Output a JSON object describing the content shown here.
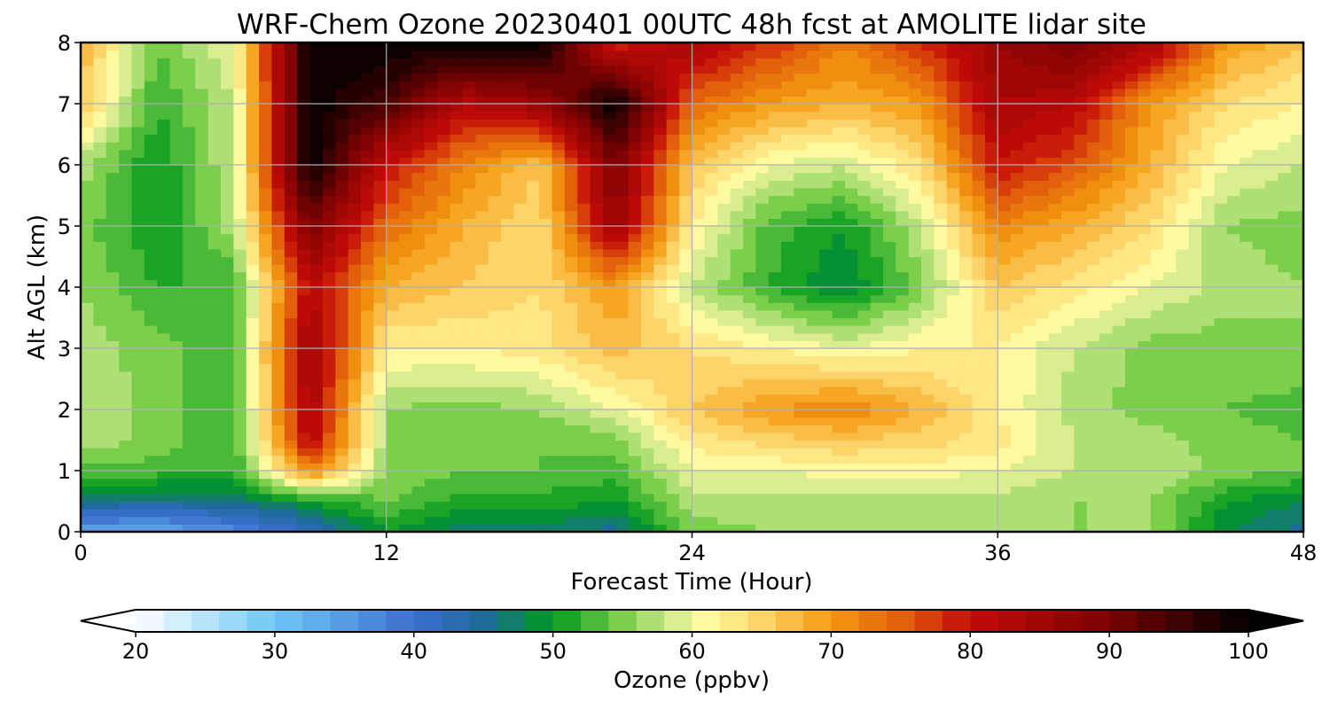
{
  "chart_data": {
    "type": "heatmap",
    "title": "WRF-Chem Ozone  20230401 00UTC 48h fcst at AMOLITE lidar site",
    "xlabel": "Forecast Time (Hour)",
    "ylabel": "Alt AGL (km)",
    "xlim": [
      0,
      48
    ],
    "ylim": [
      0,
      8
    ],
    "xticks": [
      0,
      12,
      24,
      36,
      48
    ],
    "yticks": [
      0,
      1,
      2,
      3,
      4,
      5,
      6,
      7,
      8
    ],
    "grid": true,
    "x": [
      0,
      3,
      6,
      9,
      12,
      15,
      18,
      21,
      24,
      27,
      30,
      33,
      36,
      39,
      42,
      45,
      48
    ],
    "y": [
      0,
      0.5,
      1,
      1.5,
      2,
      3,
      4,
      5,
      6,
      7,
      8
    ],
    "z": [
      [
        34,
        33,
        37,
        42,
        50,
        47,
        47,
        45,
        55,
        56,
        56,
        56,
        56,
        56,
        56,
        48,
        45
      ],
      [
        46,
        45,
        46,
        50,
        54,
        51,
        51,
        50,
        57,
        57,
        57,
        57,
        57,
        56,
        56,
        50,
        48
      ],
      [
        53,
        53,
        52,
        72,
        56,
        54,
        54,
        53,
        60,
        60,
        61,
        61,
        60,
        58,
        58,
        55,
        54
      ],
      [
        58,
        55,
        52,
        82,
        56,
        55,
        54,
        55,
        63,
        65,
        66,
        65,
        63,
        58,
        57,
        55,
        54
      ],
      [
        58,
        55,
        52,
        84,
        56,
        55,
        56,
        60,
        66,
        70,
        72,
        68,
        62,
        57,
        55,
        54,
        53
      ],
      [
        57,
        55,
        52,
        86,
        62,
        62,
        63,
        67,
        64,
        62,
        60,
        62,
        62,
        58,
        55,
        55,
        56
      ],
      [
        56,
        52,
        52,
        82,
        68,
        66,
        64,
        70,
        58,
        52,
        48,
        55,
        66,
        63,
        60,
        57,
        56
      ],
      [
        55,
        50,
        57,
        90,
        74,
        68,
        64,
        86,
        62,
        53,
        50,
        58,
        72,
        68,
        64,
        56,
        55
      ],
      [
        57,
        50,
        58,
        100,
        80,
        72,
        66,
        90,
        66,
        60,
        58,
        64,
        80,
        76,
        68,
        60,
        58
      ],
      [
        66,
        52,
        58,
        100,
        94,
        82,
        86,
        100,
        74,
        70,
        68,
        70,
        84,
        82,
        70,
        64,
        62
      ],
      [
        68,
        54,
        60,
        100,
        100,
        100,
        100,
        78,
        84,
        78,
        72,
        78,
        86,
        90,
        84,
        70,
        66
      ]
    ]
  },
  "colorbar": {
    "label": "Ozone  (ppbv)",
    "min": 20,
    "max": 100,
    "ticks": [
      20,
      30,
      40,
      50,
      60,
      70,
      80,
      90,
      100
    ],
    "extend": "both",
    "stops": [
      {
        "v": 20,
        "c": "#ffffff"
      },
      {
        "v": 30,
        "c": "#6ec8f5"
      },
      {
        "v": 40,
        "c": "#3d6fd0"
      },
      {
        "v": 45,
        "c": "#1e6a9a"
      },
      {
        "v": 50,
        "c": "#00991c"
      },
      {
        "v": 55,
        "c": "#7ccf4a"
      },
      {
        "v": 58,
        "c": "#c8e88a"
      },
      {
        "v": 61,
        "c": "#fffaa0"
      },
      {
        "v": 65,
        "c": "#fdd46a"
      },
      {
        "v": 70,
        "c": "#f49a10"
      },
      {
        "v": 75,
        "c": "#e2600c"
      },
      {
        "v": 80,
        "c": "#c30c08"
      },
      {
        "v": 90,
        "c": "#7a0202"
      },
      {
        "v": 100,
        "c": "#000000"
      }
    ]
  }
}
